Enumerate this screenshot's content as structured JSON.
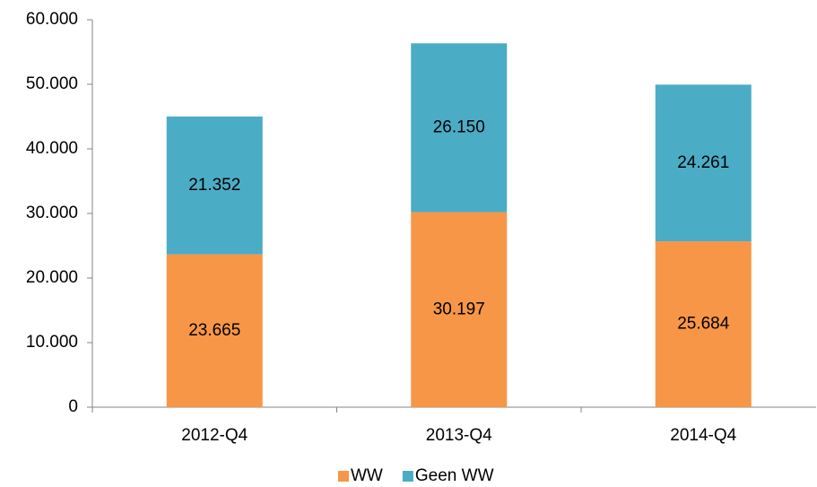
{
  "chart_data": {
    "type": "stacked_bar",
    "categories": [
      "2012-Q4",
      "2013-Q4",
      "2014-Q4"
    ],
    "series": [
      {
        "name": "WW",
        "color": "#f79646",
        "values": [
          23665,
          30197,
          25684
        ],
        "value_labels": [
          "23.665",
          "30.197",
          "25.684"
        ]
      },
      {
        "name": "Geen WW",
        "color": "#4bacc6",
        "values": [
          21352,
          26150,
          24261
        ],
        "value_labels": [
          "21.352",
          "26.150",
          "24.261"
        ]
      }
    ],
    "ylim": [
      0,
      60000
    ],
    "yticks": [
      0,
      {
        "value": 10000,
        "label": "10.000"
      },
      {
        "value": 20000,
        "label": "20.000"
      },
      {
        "value": 30000,
        "label": "30.000"
      },
      {
        "value": 40000,
        "label": "40.000"
      },
      {
        "value": 50000,
        "label": "50.000"
      },
      {
        "value": 60000,
        "label": "60.000"
      }
    ],
    "legend": "bottom"
  }
}
